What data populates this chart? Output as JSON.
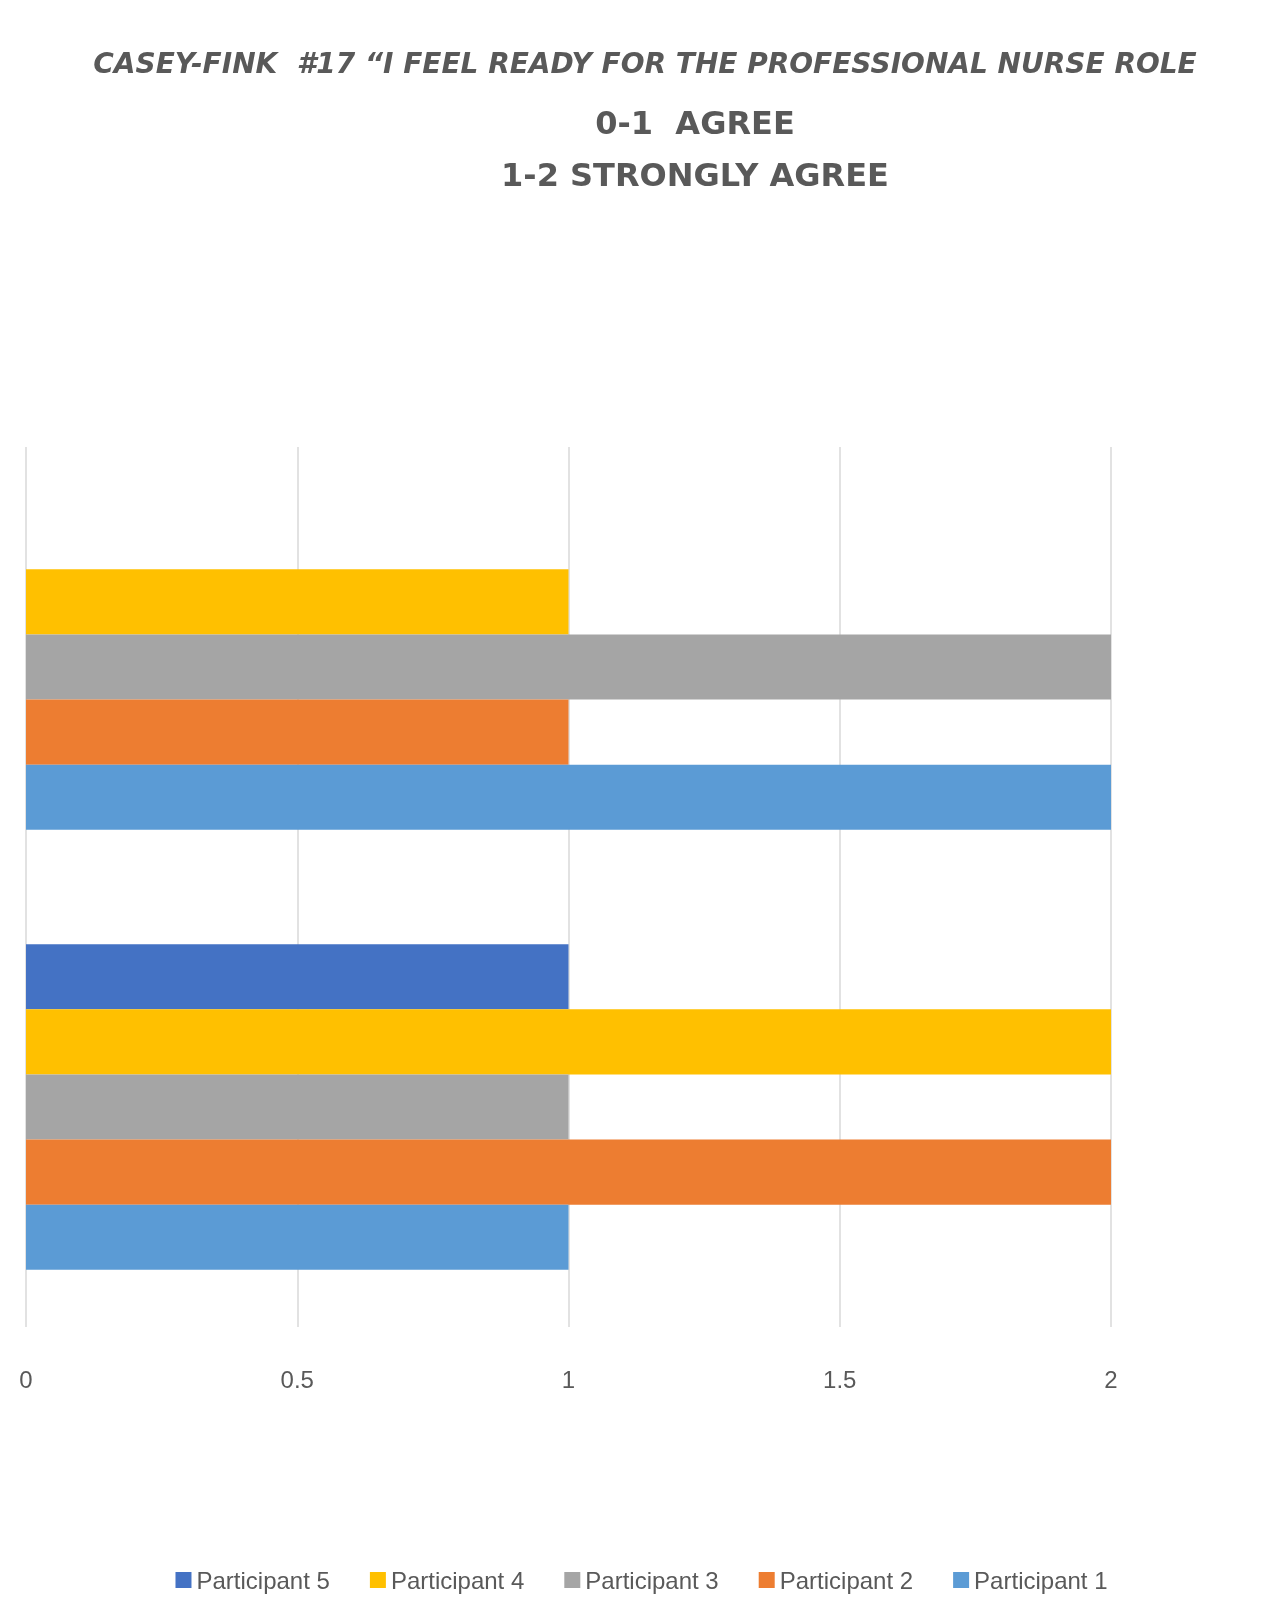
{
  "chart_data": {
    "type": "bar",
    "orientation": "horizontal",
    "title": "CASEY-FINK  #17 “I FEEL READY FOR THE PROFESSIONAL NURSE ROLE",
    "subtitle": "0-1  AGREE\n1-2 STRONGLY AGREE",
    "categories": [
      null,
      null
    ],
    "series": [
      {
        "name": "Participant 5",
        "color": "#4472c4",
        "values": [
          null,
          1
        ]
      },
      {
        "name": "Participant 4",
        "color": "#ffc000",
        "values": [
          1,
          2
        ]
      },
      {
        "name": "Participant 3",
        "color": "#a5a5a5",
        "values": [
          2,
          1
        ]
      },
      {
        "name": "Participant 2",
        "color": "#ed7d31",
        "values": [
          1,
          2
        ]
      },
      {
        "name": "Participant 1",
        "color": "#5b9bd5",
        "values": [
          2,
          1
        ]
      }
    ],
    "xlim": [
      0,
      2
    ],
    "xticks": [
      0,
      0.5,
      1,
      1.5,
      2
    ],
    "grid": "x",
    "legend": "bottom"
  }
}
